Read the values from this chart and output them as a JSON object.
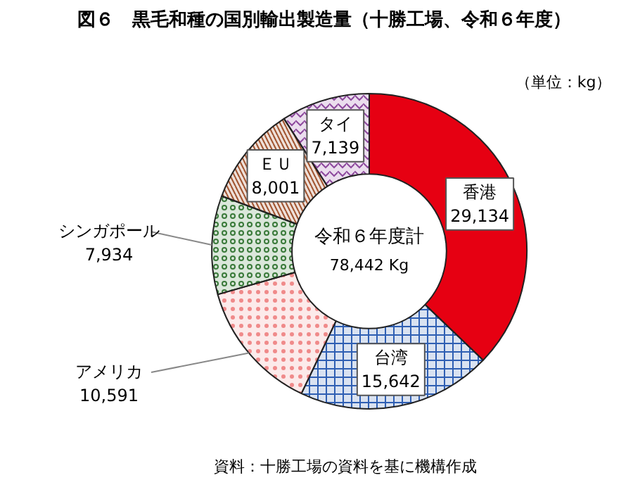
{
  "chart_data": {
    "type": "donut",
    "title": "図６　黒毛和種の国別輸出製造量（十勝工場、令和６年度）",
    "categories": [
      "香港",
      "台湾",
      "アメリカ",
      "シンガポール",
      "ＥＵ",
      "タイ"
    ],
    "values": [
      29134,
      15642,
      10591,
      7934,
      8001,
      7139
    ],
    "colors": [
      "#e60012",
      "#2f5fb3",
      "#f08a8a",
      "#3a7a3a",
      "#a0522d",
      "#8e4a9e"
    ],
    "value_labels": [
      "29,134",
      "15,642",
      "10,591",
      "7,934",
      "8,001",
      "7,139"
    ],
    "annotations": [
      "令和６年度計",
      "78,442 Kg",
      "（単位：kg）",
      "資料：十勝工場の資料を基に機構作成"
    ]
  }
}
